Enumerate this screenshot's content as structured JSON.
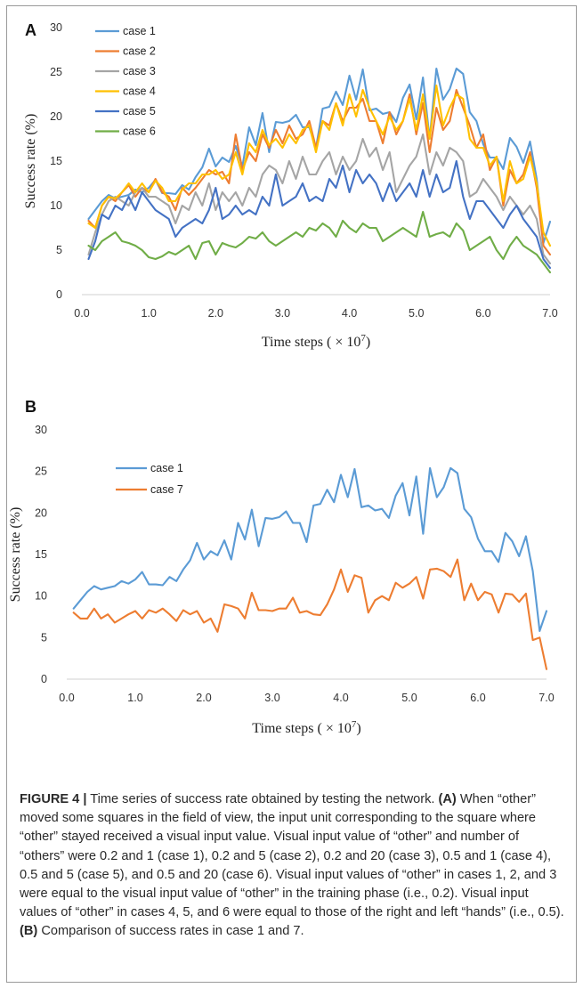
{
  "figure": {
    "caption": {
      "label": "FIGURE 4 |",
      "part1": " Time series of success rate obtained by testing the network. ",
      "ref_a": "(A)",
      "part2": " When “other” moved some squares in the field of view, the input unit corresponding to the square where “other” stayed received a visual input value. Visual input value of “other” and number of “others” were 0.2 and 1 (case 1), 0.2 and 5 (case 2), 0.2 and 20 (case 3), 0.5 and 1 (case 4), 0.5 and 5 (case 5), and 0.5 and 20 (case 6). Visual input values of “other” in cases 1, 2, and 3 were equal to the visual input value of “other” in the training phase (i.e., 0.2). Visual input values of “other” in cases 4, 5, and 6 were equal to those of the right and left “hands” (i.e., 0.5). ",
      "ref_b": "(B)",
      "part3": " Comparison of success rates in case 1 and 7."
    }
  },
  "chart_data": [
    {
      "panel": "A",
      "type": "line",
      "xlabel": "Time steps (×10⁷)",
      "ylabel": "Success rate (%)",
      "xlim": [
        0,
        7.0
      ],
      "ylim": [
        0,
        30
      ],
      "xticks": [
        "0.0",
        "1.0",
        "2.0",
        "3.0",
        "4.0",
        "5.0",
        "6.0",
        "7.0"
      ],
      "yticks": [
        "0",
        "5",
        "10",
        "15",
        "20",
        "25",
        "30"
      ],
      "grid": false,
      "legend_position": "top-left",
      "x": [
        0.1,
        0.2,
        0.3,
        0.4,
        0.5,
        0.6,
        0.7,
        0.8,
        0.9,
        1.0,
        1.1,
        1.2,
        1.3,
        1.4,
        1.5,
        1.6,
        1.7,
        1.8,
        1.9,
        2.0,
        2.1,
        2.2,
        2.3,
        2.4,
        2.5,
        2.6,
        2.7,
        2.8,
        2.9,
        3.0,
        3.1,
        3.2,
        3.3,
        3.4,
        3.5,
        3.6,
        3.7,
        3.8,
        3.9,
        4.0,
        4.1,
        4.2,
        4.3,
        4.4,
        4.5,
        4.6,
        4.7,
        4.8,
        4.9,
        5.0,
        5.1,
        5.2,
        5.3,
        5.4,
        5.5,
        5.6,
        5.7,
        5.8,
        5.9,
        6.0,
        6.1,
        6.2,
        6.3,
        6.4,
        6.5,
        6.6,
        6.7,
        6.8,
        6.9,
        7.0
      ],
      "series": [
        {
          "name": "case 1",
          "color": "#5b9bd5",
          "values": [
            8.5,
            9.5,
            10.5,
            11.2,
            10.8,
            11.0,
            11.2,
            11.8,
            11.5,
            12.0,
            12.9,
            11.4,
            11.4,
            11.3,
            12.3,
            11.8,
            13.2,
            14.3,
            16.4,
            14.4,
            15.4,
            14.9,
            16.7,
            14.4,
            18.8,
            16.8,
            20.4,
            16.0,
            19.4,
            19.3,
            19.5,
            20.2,
            18.8,
            18.8,
            16.5,
            20.9,
            21.1,
            22.8,
            21.3,
            24.6,
            21.9,
            25.3,
            20.7,
            20.9,
            20.3,
            20.5,
            19.4,
            22.1,
            23.6,
            19.7,
            24.4,
            17.5,
            25.4,
            21.9,
            23.1,
            25.4,
            24.8,
            20.5,
            19.5,
            16.9,
            15.4,
            15.4,
            14.1,
            17.6,
            16.6,
            14.8,
            17.2,
            13.0,
            5.8,
            8.2
          ]
        },
        {
          "name": "case 2",
          "color": "#ed7d31",
          "values": [
            8.3,
            7.5,
            10.0,
            11.0,
            10.5,
            11.5,
            12.3,
            11.0,
            12.0,
            11.5,
            13.0,
            11.5,
            11.0,
            9.5,
            12.0,
            11.2,
            12.0,
            13.0,
            14.0,
            13.5,
            13.8,
            12.5,
            18.0,
            14.0,
            16.0,
            15.0,
            18.0,
            16.5,
            18.5,
            17.0,
            19.0,
            17.5,
            18.0,
            19.5,
            16.5,
            19.5,
            19.0,
            21.5,
            19.5,
            21.0,
            21.0,
            22.0,
            19.5,
            19.5,
            17.0,
            20.5,
            18.0,
            19.5,
            22.5,
            18.0,
            21.5,
            16.0,
            21.0,
            18.5,
            19.5,
            23.0,
            21.0,
            19.0,
            16.5,
            18.0,
            14.0,
            15.5,
            10.0,
            14.0,
            12.5,
            13.5,
            16.0,
            12.0,
            5.5,
            4.5
          ]
        },
        {
          "name": "case 3",
          "color": "#a5a5a5",
          "values": [
            4.5,
            7.0,
            9.0,
            10.5,
            11.0,
            10.5,
            10.0,
            11.5,
            12.0,
            11.0,
            11.0,
            10.5,
            10.0,
            8.0,
            10.0,
            9.5,
            11.5,
            10.0,
            12.5,
            9.5,
            11.5,
            10.5,
            11.5,
            10.0,
            12.0,
            11.0,
            13.5,
            14.5,
            14.0,
            12.5,
            15.0,
            13.0,
            15.5,
            13.5,
            13.5,
            15.0,
            16.0,
            13.5,
            15.5,
            14.0,
            15.0,
            17.5,
            15.5,
            16.5,
            14.0,
            16.0,
            11.5,
            13.0,
            14.5,
            15.5,
            18.0,
            13.5,
            16.0,
            14.5,
            16.5,
            16.0,
            15.0,
            11.0,
            11.5,
            13.0,
            12.0,
            11.0,
            9.5,
            11.0,
            10.0,
            9.0,
            10.0,
            8.5,
            4.5,
            3.5
          ]
        },
        {
          "name": "case 4",
          "color": "#ffc000",
          "values": [
            8.0,
            7.5,
            10.0,
            11.0,
            10.8,
            11.5,
            12.5,
            11.5,
            12.5,
            11.5,
            12.8,
            12.0,
            10.5,
            10.5,
            11.8,
            12.5,
            12.5,
            13.5,
            13.5,
            14.0,
            13.0,
            13.5,
            16.0,
            13.5,
            17.0,
            16.0,
            18.5,
            16.8,
            17.5,
            16.5,
            18.0,
            17.0,
            18.5,
            19.0,
            16.0,
            19.5,
            18.5,
            21.5,
            19.0,
            22.5,
            20.0,
            23.0,
            21.0,
            19.5,
            18.0,
            20.0,
            18.5,
            19.5,
            22.0,
            18.5,
            22.5,
            17.5,
            23.5,
            19.0,
            21.0,
            22.5,
            22.0,
            17.5,
            16.5,
            16.5,
            14.5,
            15.5,
            10.5,
            15.0,
            12.5,
            13.0,
            15.5,
            12.5,
            7.0,
            5.5
          ]
        },
        {
          "name": "case 5",
          "color": "#4472c4",
          "values": [
            4.0,
            6.0,
            9.0,
            8.5,
            10.0,
            9.5,
            11.0,
            9.5,
            11.5,
            10.5,
            9.5,
            9.0,
            8.5,
            6.5,
            7.5,
            8.0,
            8.5,
            8.0,
            9.5,
            12.0,
            8.5,
            9.0,
            10.0,
            9.0,
            9.5,
            9.0,
            11.0,
            10.0,
            13.5,
            10.0,
            10.5,
            11.0,
            12.5,
            10.5,
            11.0,
            10.5,
            13.0,
            12.0,
            14.5,
            11.5,
            14.0,
            12.5,
            13.5,
            12.5,
            10.5,
            12.5,
            10.5,
            11.5,
            12.5,
            11.0,
            14.0,
            11.0,
            13.5,
            11.5,
            12.0,
            15.0,
            11.0,
            8.5,
            10.5,
            10.5,
            9.5,
            8.5,
            7.5,
            9.0,
            10.0,
            8.5,
            7.5,
            6.5,
            4.0,
            3.0
          ]
        },
        {
          "name": "case 6",
          "color": "#70ad47",
          "values": [
            5.5,
            5.0,
            6.0,
            6.5,
            7.0,
            6.0,
            5.8,
            5.5,
            5.0,
            4.2,
            4.0,
            4.3,
            4.8,
            4.5,
            5.0,
            5.5,
            4.0,
            5.8,
            6.0,
            4.5,
            5.8,
            5.5,
            5.3,
            5.8,
            6.5,
            6.3,
            7.0,
            6.0,
            5.5,
            6.0,
            6.5,
            7.0,
            6.5,
            7.5,
            7.2,
            8.0,
            7.5,
            6.5,
            8.3,
            7.5,
            7.0,
            8.0,
            7.5,
            7.5,
            6.0,
            6.5,
            7.0,
            7.5,
            7.0,
            6.5,
            9.3,
            6.5,
            6.8,
            7.0,
            6.5,
            8.0,
            7.2,
            5.0,
            5.5,
            6.0,
            6.5,
            5.0,
            4.0,
            5.5,
            6.5,
            5.5,
            5.0,
            4.5,
            3.5,
            2.5
          ]
        }
      ]
    },
    {
      "panel": "B",
      "type": "line",
      "xlabel": "Time steps (×10⁷)",
      "ylabel": "Success rate (%)",
      "xlim": [
        0,
        7.0
      ],
      "ylim": [
        0,
        30
      ],
      "xticks": [
        "0.0",
        "1.0",
        "2.0",
        "3.0",
        "4.0",
        "5.0",
        "6.0",
        "7.0"
      ],
      "yticks": [
        "0",
        "5",
        "10",
        "15",
        "20",
        "25",
        "30"
      ],
      "grid": false,
      "legend_position": "top-left",
      "x": [
        0.1,
        0.2,
        0.3,
        0.4,
        0.5,
        0.6,
        0.7,
        0.8,
        0.9,
        1.0,
        1.1,
        1.2,
        1.3,
        1.4,
        1.5,
        1.6,
        1.7,
        1.8,
        1.9,
        2.0,
        2.1,
        2.2,
        2.3,
        2.4,
        2.5,
        2.6,
        2.7,
        2.8,
        2.9,
        3.0,
        3.1,
        3.2,
        3.3,
        3.4,
        3.5,
        3.6,
        3.7,
        3.8,
        3.9,
        4.0,
        4.1,
        4.2,
        4.3,
        4.4,
        4.5,
        4.6,
        4.7,
        4.8,
        4.9,
        5.0,
        5.1,
        5.2,
        5.3,
        5.4,
        5.5,
        5.6,
        5.7,
        5.8,
        5.9,
        6.0,
        6.1,
        6.2,
        6.3,
        6.4,
        6.5,
        6.6,
        6.7,
        6.8,
        6.9,
        7.0
      ],
      "series": [
        {
          "name": "case 1",
          "color": "#5b9bd5",
          "values": [
            8.5,
            9.5,
            10.5,
            11.2,
            10.8,
            11.0,
            11.2,
            11.8,
            11.5,
            12.0,
            12.9,
            11.4,
            11.4,
            11.3,
            12.3,
            11.8,
            13.2,
            14.3,
            16.4,
            14.4,
            15.4,
            14.9,
            16.7,
            14.4,
            18.8,
            16.8,
            20.4,
            16.0,
            19.4,
            19.3,
            19.5,
            20.2,
            18.8,
            18.8,
            16.5,
            20.9,
            21.1,
            22.8,
            21.3,
            24.6,
            21.9,
            25.3,
            20.7,
            20.9,
            20.3,
            20.5,
            19.4,
            22.1,
            23.6,
            19.7,
            24.4,
            17.5,
            25.4,
            21.9,
            23.1,
            25.4,
            24.8,
            20.5,
            19.5,
            16.9,
            15.4,
            15.4,
            14.1,
            17.6,
            16.6,
            14.8,
            17.2,
            13.0,
            5.8,
            8.2
          ]
        },
        {
          "name": "case 7",
          "color": "#ed7d31",
          "values": [
            8.0,
            7.3,
            7.3,
            8.5,
            7.3,
            7.8,
            6.8,
            7.3,
            7.8,
            8.2,
            7.3,
            8.3,
            8.0,
            8.5,
            7.8,
            7.0,
            8.3,
            7.8,
            8.2,
            6.8,
            7.3,
            5.7,
            9.0,
            8.8,
            8.5,
            7.3,
            10.4,
            8.3,
            8.3,
            8.2,
            8.5,
            8.5,
            9.8,
            8.0,
            8.2,
            7.8,
            7.7,
            9.0,
            10.8,
            13.2,
            10.5,
            12.5,
            12.2,
            8.0,
            9.5,
            10.0,
            9.5,
            11.6,
            11.0,
            11.5,
            12.3,
            9.7,
            13.2,
            13.3,
            13.0,
            12.3,
            14.4,
            9.5,
            11.5,
            9.5,
            10.5,
            10.2,
            8.0,
            10.3,
            10.2,
            9.3,
            10.3,
            4.7,
            5.0,
            1.2
          ]
        }
      ]
    }
  ]
}
